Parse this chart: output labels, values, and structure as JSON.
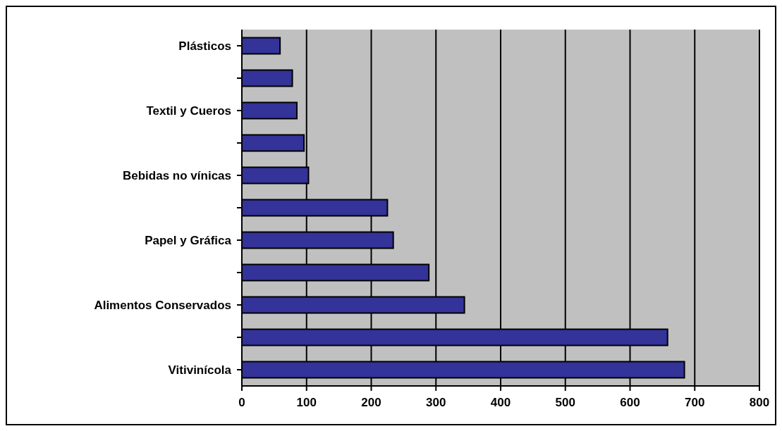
{
  "chart_data": {
    "type": "bar",
    "orientation": "horizontal",
    "categories": [
      "Plásticos",
      null,
      "Textil y Cueros",
      null,
      "Bebidas no vínicas",
      null,
      "Papel y Gráfica",
      null,
      "Alimentos Conservados",
      null,
      "Vitivinícola"
    ],
    "values": [
      59,
      78,
      85,
      96,
      103,
      225,
      234,
      289,
      344,
      658,
      684
    ],
    "color": "#333399",
    "xlim": [
      0,
      800
    ],
    "xticks": [
      0,
      100,
      200,
      300,
      400,
      500,
      600,
      700,
      800
    ],
    "grid": "x"
  }
}
